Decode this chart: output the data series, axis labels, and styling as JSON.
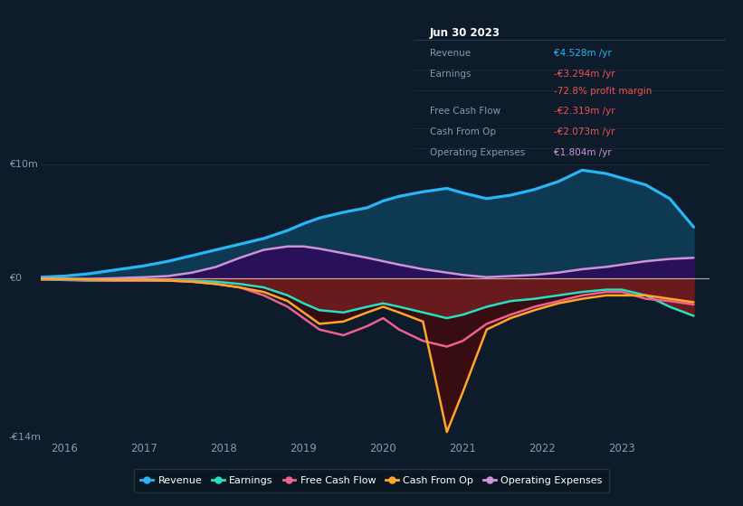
{
  "bg_color": "#0d1b2a",
  "ylim": [
    -14,
    10
  ],
  "xlim": [
    2015.7,
    2024.1
  ],
  "xticks": [
    2016,
    2017,
    2018,
    2019,
    2020,
    2021,
    2022,
    2023
  ],
  "ylabel_top": "€10m",
  "ylabel_zero": "€0",
  "ylabel_bottom": "-€14m",
  "info_box": {
    "title": "Jun 30 2023",
    "rows": [
      {
        "label": "Revenue",
        "value": "€4.528m /yr",
        "value_color": "#29b6f6"
      },
      {
        "label": "Earnings",
        "value": "-€3.294m /yr",
        "value_color": "#ef5350"
      },
      {
        "label": "",
        "value": "-72.8% profit margin",
        "value_color": "#ef5350"
      },
      {
        "label": "Free Cash Flow",
        "value": "-€2.319m /yr",
        "value_color": "#ef5350"
      },
      {
        "label": "Cash From Op",
        "value": "-€2.073m /yr",
        "value_color": "#ef5350"
      },
      {
        "label": "Operating Expenses",
        "value": "€1.804m /yr",
        "value_color": "#ce93d8"
      }
    ]
  },
  "legend": [
    {
      "label": "Revenue",
      "color": "#29b6f6"
    },
    {
      "label": "Earnings",
      "color": "#26e0c0"
    },
    {
      "label": "Free Cash Flow",
      "color": "#f06090"
    },
    {
      "label": "Cash From Op",
      "color": "#ffa726"
    },
    {
      "label": "Operating Expenses",
      "color": "#ce93d8"
    }
  ],
  "series": {
    "x": [
      2015.7,
      2016.0,
      2016.3,
      2016.6,
      2017.0,
      2017.3,
      2017.6,
      2017.9,
      2018.2,
      2018.5,
      2018.8,
      2019.0,
      2019.2,
      2019.5,
      2019.8,
      2020.0,
      2020.2,
      2020.5,
      2020.8,
      2021.0,
      2021.3,
      2021.6,
      2021.9,
      2022.2,
      2022.5,
      2022.8,
      2023.0,
      2023.3,
      2023.6,
      2023.9
    ],
    "revenue": [
      0.1,
      0.2,
      0.4,
      0.7,
      1.1,
      1.5,
      2.0,
      2.5,
      3.0,
      3.5,
      4.2,
      4.8,
      5.3,
      5.8,
      6.2,
      6.8,
      7.2,
      7.6,
      7.9,
      7.5,
      7.0,
      7.3,
      7.8,
      8.5,
      9.5,
      9.2,
      8.8,
      8.2,
      7.0,
      4.5
    ],
    "opex": [
      0.0,
      -0.05,
      -0.05,
      0.0,
      0.1,
      0.2,
      0.5,
      1.0,
      1.8,
      2.5,
      2.8,
      2.8,
      2.6,
      2.2,
      1.8,
      1.5,
      1.2,
      0.8,
      0.5,
      0.3,
      0.1,
      0.2,
      0.3,
      0.5,
      0.8,
      1.0,
      1.2,
      1.5,
      1.7,
      1.8
    ],
    "earnings": [
      -0.1,
      -0.15,
      -0.2,
      -0.2,
      -0.2,
      -0.2,
      -0.2,
      -0.3,
      -0.5,
      -0.8,
      -1.5,
      -2.2,
      -2.8,
      -3.0,
      -2.5,
      -2.2,
      -2.5,
      -3.0,
      -3.5,
      -3.2,
      -2.5,
      -2.0,
      -1.8,
      -1.5,
      -1.2,
      -1.0,
      -1.0,
      -1.5,
      -2.5,
      -3.3
    ],
    "fcf": [
      -0.1,
      -0.1,
      -0.15,
      -0.2,
      -0.2,
      -0.2,
      -0.3,
      -0.5,
      -0.8,
      -1.5,
      -2.5,
      -3.5,
      -4.5,
      -5.0,
      -4.2,
      -3.5,
      -4.5,
      -5.5,
      -6.0,
      -5.5,
      -4.0,
      -3.2,
      -2.5,
      -2.0,
      -1.5,
      -1.2,
      -1.2,
      -1.8,
      -2.0,
      -2.3
    ],
    "cashfromop": [
      -0.05,
      -0.05,
      -0.1,
      -0.15,
      -0.15,
      -0.2,
      -0.3,
      -0.5,
      -0.8,
      -1.2,
      -2.0,
      -3.0,
      -4.0,
      -3.8,
      -3.0,
      -2.5,
      -3.0,
      -3.8,
      -13.5,
      -10.0,
      -4.5,
      -3.5,
      -2.8,
      -2.2,
      -1.8,
      -1.5,
      -1.5,
      -1.5,
      -1.8,
      -2.1
    ]
  },
  "fill_revenue_color": "#0d3f5a",
  "fill_opex_color": "#2d0a5a",
  "fill_neg_color": "#7a1a1a",
  "fill_deep_color": "#4a0808"
}
